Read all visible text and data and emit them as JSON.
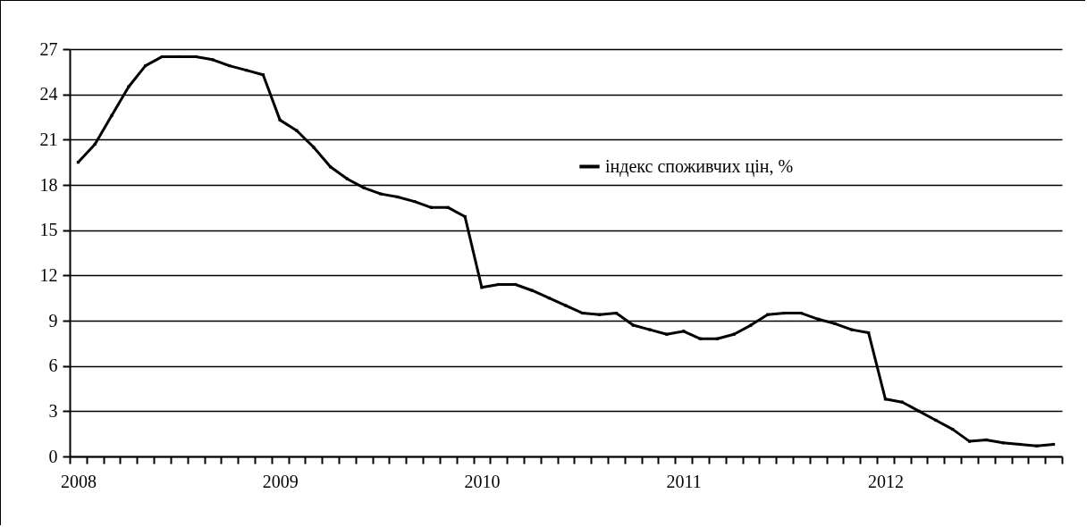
{
  "chart_data": {
    "type": "line",
    "categories": [
      "2008",
      null,
      null,
      null,
      null,
      null,
      null,
      null,
      null,
      null,
      null,
      null,
      "2009",
      null,
      null,
      null,
      null,
      null,
      null,
      null,
      null,
      null,
      null,
      null,
      "2010",
      null,
      null,
      null,
      null,
      null,
      null,
      null,
      null,
      null,
      null,
      null,
      "2011",
      null,
      null,
      null,
      null,
      null,
      null,
      null,
      null,
      null,
      null,
      null,
      "2012",
      null,
      null,
      null,
      null,
      null,
      null,
      null,
      null,
      null,
      null
    ],
    "series": [
      {
        "name": "індекс споживчих цін, %",
        "color": "#000000",
        "values": [
          19.5,
          20.7,
          22.6,
          24.5,
          25.9,
          26.5,
          26.5,
          26.5,
          26.3,
          25.9,
          25.6,
          25.3,
          22.3,
          21.6,
          20.5,
          19.2,
          18.4,
          17.8,
          17.4,
          17.2,
          16.9,
          16.5,
          16.5,
          15.9,
          11.2,
          11.4,
          11.4,
          11.0,
          10.5,
          10.0,
          9.5,
          9.4,
          9.5,
          8.7,
          8.4,
          8.1,
          8.3,
          7.8,
          7.8,
          8.1,
          8.7,
          9.4,
          9.5,
          9.5,
          9.1,
          8.8,
          8.4,
          8.2,
          3.8,
          3.6,
          3.0,
          2.4,
          1.8,
          1.0,
          1.1,
          0.9,
          0.8,
          0.7,
          0.8
        ]
      }
    ],
    "ylim": [
      0,
      27
    ],
    "yticks": [
      0,
      3,
      6,
      9,
      12,
      15,
      18,
      21,
      24,
      27
    ],
    "grid": "y",
    "legend": "top right",
    "marker": "square",
    "line_style": "solid"
  }
}
